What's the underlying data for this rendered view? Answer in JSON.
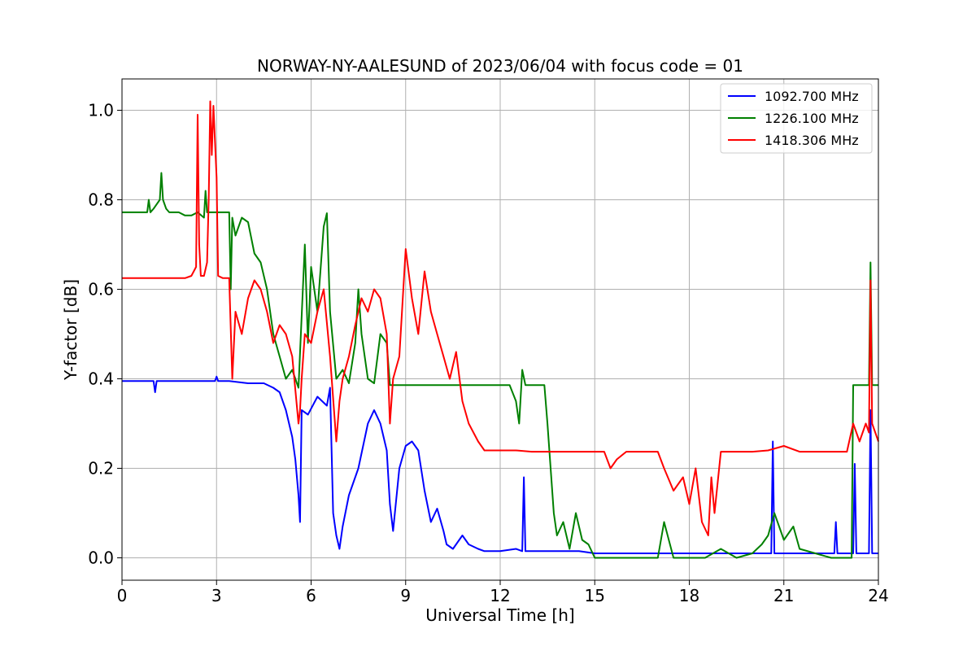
{
  "chart_data": {
    "type": "line",
    "title": "NORWAY-NY-AALESUND of 2023/06/04 with focus code = 01",
    "xlabel": "Universal Time [h]",
    "ylabel": "Y-factor [dB]",
    "xlim": [
      0,
      24
    ],
    "ylim": [
      -0.05,
      1.07
    ],
    "xticks": [
      0,
      3,
      6,
      9,
      12,
      15,
      18,
      21,
      24
    ],
    "xtick_labels": [
      "0",
      "3",
      "6",
      "9",
      "12",
      "15",
      "18",
      "21",
      "24"
    ],
    "yticks": [
      0.0,
      0.2,
      0.4,
      0.6,
      0.8,
      1.0
    ],
    "ytick_labels": [
      "0.0",
      "0.2",
      "0.4",
      "0.6",
      "0.8",
      "1.0"
    ],
    "grid": true,
    "legend_position": "top-right",
    "series": [
      {
        "name": "1092.700 MHz",
        "color": "#0000ff",
        "x": [
          0,
          1.0,
          1.05,
          1.1,
          2.0,
          2.95,
          3.0,
          3.05,
          3.4,
          4.0,
          4.5,
          4.8,
          5.0,
          5.2,
          5.4,
          5.5,
          5.6,
          5.65,
          5.7,
          5.9,
          6.2,
          6.5,
          6.6,
          6.7,
          6.8,
          6.9,
          7.0,
          7.2,
          7.5,
          7.8,
          8.0,
          8.2,
          8.4,
          8.5,
          8.6,
          8.8,
          9.0,
          9.2,
          9.4,
          9.6,
          9.8,
          10.0,
          10.2,
          10.3,
          10.5,
          10.8,
          11.0,
          11.3,
          11.5,
          12.0,
          12.5,
          12.7,
          12.75,
          12.8,
          13.0,
          13.5,
          14.0,
          14.5,
          15.0,
          16.0,
          17.0,
          18.0,
          19.0,
          20.0,
          20.6,
          20.65,
          20.7,
          21.0,
          22.0,
          22.6,
          22.65,
          22.7,
          23.0,
          23.2,
          23.25,
          23.3,
          23.7,
          23.75,
          23.8,
          24.0
        ],
        "y": [
          0.395,
          0.395,
          0.37,
          0.395,
          0.395,
          0.395,
          0.405,
          0.395,
          0.395,
          0.39,
          0.39,
          0.38,
          0.37,
          0.33,
          0.27,
          0.22,
          0.14,
          0.08,
          0.33,
          0.32,
          0.36,
          0.34,
          0.38,
          0.1,
          0.05,
          0.02,
          0.07,
          0.14,
          0.2,
          0.3,
          0.33,
          0.3,
          0.24,
          0.12,
          0.06,
          0.2,
          0.25,
          0.26,
          0.24,
          0.15,
          0.08,
          0.11,
          0.06,
          0.03,
          0.02,
          0.05,
          0.03,
          0.02,
          0.015,
          0.015,
          0.02,
          0.015,
          0.18,
          0.015,
          0.015,
          0.015,
          0.015,
          0.015,
          0.01,
          0.01,
          0.01,
          0.01,
          0.01,
          0.01,
          0.01,
          0.26,
          0.01,
          0.01,
          0.01,
          0.01,
          0.08,
          0.01,
          0.01,
          0.01,
          0.21,
          0.01,
          0.01,
          0.33,
          0.01,
          0.01
        ]
      },
      {
        "name": "1226.100 MHz",
        "color": "#008000",
        "x": [
          0,
          0.8,
          0.85,
          0.9,
          1.0,
          1.2,
          1.25,
          1.3,
          1.4,
          1.5,
          1.8,
          2.0,
          2.2,
          2.4,
          2.6,
          2.65,
          2.7,
          2.9,
          3.0,
          3.2,
          3.4,
          3.45,
          3.5,
          3.6,
          3.8,
          4.0,
          4.2,
          4.4,
          4.6,
          4.8,
          5.0,
          5.2,
          5.4,
          5.6,
          5.8,
          5.9,
          6.0,
          6.2,
          6.4,
          6.5,
          6.6,
          6.8,
          7.0,
          7.2,
          7.4,
          7.5,
          7.6,
          7.8,
          8.0,
          8.2,
          8.4,
          8.5,
          8.6,
          9.0,
          9.5,
          10.0,
          10.5,
          11.0,
          11.5,
          12.0,
          12.3,
          12.5,
          12.6,
          12.7,
          12.8,
          13.0,
          13.2,
          13.4,
          13.5,
          13.6,
          13.7,
          13.8,
          14.0,
          14.2,
          14.4,
          14.6,
          14.8,
          15.0,
          15.2,
          15.5,
          16.0,
          16.5,
          17.0,
          17.2,
          17.5,
          18.0,
          18.5,
          19.0,
          19.5,
          20.0,
          20.3,
          20.5,
          20.7,
          21.0,
          21.3,
          21.5,
          22.0,
          22.5,
          23.0,
          23.15,
          23.2,
          23.5,
          23.7,
          23.75,
          23.8,
          24.0
        ],
        "y": [
          0.772,
          0.772,
          0.8,
          0.772,
          0.78,
          0.8,
          0.86,
          0.8,
          0.78,
          0.772,
          0.772,
          0.765,
          0.765,
          0.772,
          0.76,
          0.82,
          0.772,
          0.772,
          0.772,
          0.772,
          0.772,
          0.6,
          0.76,
          0.72,
          0.76,
          0.75,
          0.68,
          0.66,
          0.6,
          0.5,
          0.45,
          0.4,
          0.42,
          0.38,
          0.7,
          0.48,
          0.65,
          0.55,
          0.74,
          0.77,
          0.55,
          0.4,
          0.42,
          0.39,
          0.48,
          0.6,
          0.5,
          0.4,
          0.39,
          0.5,
          0.48,
          0.386,
          0.386,
          0.386,
          0.386,
          0.386,
          0.386,
          0.386,
          0.386,
          0.386,
          0.386,
          0.35,
          0.3,
          0.42,
          0.386,
          0.386,
          0.386,
          0.386,
          0.3,
          0.2,
          0.1,
          0.05,
          0.08,
          0.02,
          0.1,
          0.04,
          0.03,
          0.0,
          0.0,
          0.0,
          0.0,
          0.0,
          0.0,
          0.08,
          0.0,
          0.0,
          0.0,
          0.02,
          0.0,
          0.01,
          0.03,
          0.05,
          0.1,
          0.04,
          0.07,
          0.02,
          0.01,
          0.0,
          0.0,
          0.0,
          0.386,
          0.386,
          0.386,
          0.66,
          0.386,
          0.386
        ]
      },
      {
        "name": "1418.306 MHz",
        "color": "#ff0000",
        "x": [
          0,
          1.0,
          2.0,
          2.2,
          2.35,
          2.4,
          2.45,
          2.5,
          2.6,
          2.7,
          2.75,
          2.8,
          2.85,
          2.9,
          3.0,
          3.05,
          3.2,
          3.4,
          3.5,
          3.6,
          3.8,
          4.0,
          4.2,
          4.4,
          4.6,
          4.8,
          5.0,
          5.2,
          5.4,
          5.6,
          5.65,
          5.7,
          5.8,
          6.0,
          6.2,
          6.4,
          6.6,
          6.8,
          6.9,
          7.0,
          7.2,
          7.4,
          7.6,
          7.8,
          8.0,
          8.2,
          8.4,
          8.5,
          8.6,
          8.8,
          9.0,
          9.2,
          9.4,
          9.6,
          9.8,
          10.0,
          10.2,
          10.4,
          10.6,
          10.8,
          11.0,
          11.3,
          11.5,
          12.0,
          12.5,
          13.0,
          13.5,
          14.0,
          14.5,
          15.0,
          15.3,
          15.5,
          15.7,
          16.0,
          16.3,
          16.5,
          17.0,
          17.2,
          17.5,
          17.8,
          18.0,
          18.2,
          18.4,
          18.6,
          18.7,
          18.8,
          19.0,
          19.5,
          20.0,
          20.5,
          21.0,
          21.5,
          22.0,
          22.5,
          23.0,
          23.2,
          23.4,
          23.6,
          23.7,
          23.75,
          23.8,
          24.0
        ],
        "y": [
          0.625,
          0.625,
          0.625,
          0.63,
          0.65,
          0.99,
          0.7,
          0.63,
          0.63,
          0.66,
          0.8,
          1.02,
          0.9,
          1.01,
          0.85,
          0.63,
          0.625,
          0.625,
          0.4,
          0.55,
          0.5,
          0.58,
          0.62,
          0.6,
          0.55,
          0.48,
          0.52,
          0.5,
          0.45,
          0.3,
          0.33,
          0.4,
          0.5,
          0.48,
          0.55,
          0.6,
          0.45,
          0.26,
          0.35,
          0.4,
          0.45,
          0.52,
          0.58,
          0.55,
          0.6,
          0.58,
          0.5,
          0.3,
          0.4,
          0.45,
          0.69,
          0.58,
          0.5,
          0.64,
          0.55,
          0.5,
          0.45,
          0.4,
          0.46,
          0.35,
          0.3,
          0.26,
          0.24,
          0.24,
          0.24,
          0.237,
          0.237,
          0.237,
          0.237,
          0.237,
          0.237,
          0.2,
          0.22,
          0.237,
          0.237,
          0.237,
          0.237,
          0.2,
          0.15,
          0.18,
          0.12,
          0.2,
          0.08,
          0.05,
          0.18,
          0.1,
          0.237,
          0.237,
          0.237,
          0.24,
          0.25,
          0.237,
          0.237,
          0.237,
          0.237,
          0.3,
          0.26,
          0.3,
          0.28,
          0.62,
          0.3,
          0.26
        ]
      }
    ]
  }
}
